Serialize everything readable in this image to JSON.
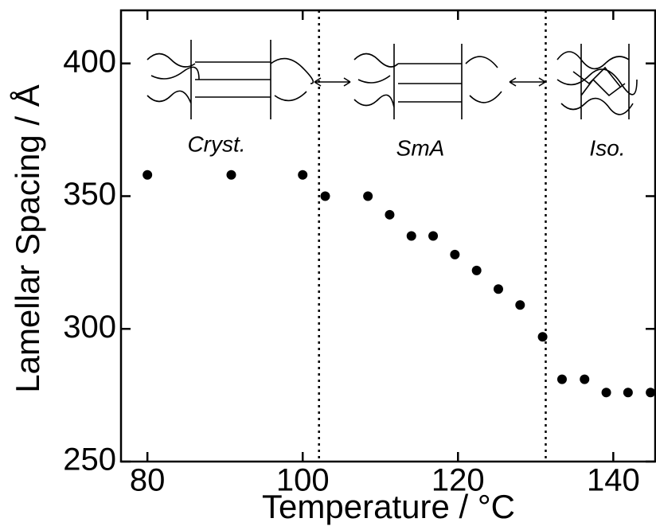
{
  "chart_data": {
    "type": "scatter",
    "xlabel": "Temperature / °C",
    "ylabel": "Lamellar Spacing / Å",
    "annotations": [
      "Cryst.",
      "SmA",
      "Iso."
    ],
    "x": [
      80,
      90.8,
      100,
      102.9,
      108.4,
      111.2,
      114,
      116.8,
      119.6,
      122.4,
      125.2,
      128,
      130.9,
      133.4,
      136.3,
      139.1,
      141.9,
      144.8
    ],
    "values": [
      358,
      358,
      358,
      350,
      350,
      343,
      335,
      335,
      328,
      322,
      315,
      309,
      297,
      281,
      281,
      276,
      276,
      276
    ],
    "color": "#000000",
    "phase_boundaries": [
      102.1,
      131.3
    ],
    "xlim": [
      76.6,
      145.4
    ],
    "ylim": [
      250,
      420
    ],
    "xticks": [
      80,
      100,
      120,
      140
    ],
    "yticks": [
      250,
      300,
      350,
      400
    ]
  }
}
